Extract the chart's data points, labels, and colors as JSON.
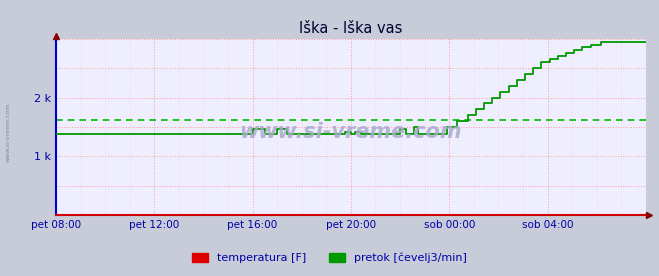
{
  "title": "Iška - Iška vas",
  "outer_bg_color": "#c8ccd8",
  "plot_bg_color": "#eeeeff",
  "ylabel": "",
  "xlabel": "",
  "xlim": [
    0,
    288
  ],
  "ylim": [
    0,
    3000
  ],
  "yticks": [
    1000,
    2000
  ],
  "ytick_labels": [
    "1 k",
    "2 k"
  ],
  "xtick_positions": [
    0,
    48,
    96,
    144,
    192,
    240
  ],
  "xtick_labels": [
    "pet 08:00",
    "pet 12:00",
    "pet 16:00",
    "pet 20:00",
    "sob 00:00",
    "sob 04:00"
  ],
  "avg_line_y": 1620,
  "avg_line_color": "#00bb00",
  "grid_color": "#ff9999",
  "legend_items": [
    {
      "label": "temperatura [F]",
      "color": "#dd0000"
    },
    {
      "label": "pretok [čevelj3/min]",
      "color": "#009900"
    }
  ],
  "pretok_data": [
    [
      0,
      1380
    ],
    [
      95,
      1380
    ],
    [
      96,
      1460
    ],
    [
      101,
      1460
    ],
    [
      102,
      1380
    ],
    [
      107,
      1380
    ],
    [
      108,
      1460
    ],
    [
      112,
      1460
    ],
    [
      113,
      1380
    ],
    [
      140,
      1380
    ],
    [
      141,
      1420
    ],
    [
      143,
      1420
    ],
    [
      144,
      1380
    ],
    [
      145,
      1380
    ],
    [
      146,
      1410
    ],
    [
      148,
      1410
    ],
    [
      149,
      1380
    ],
    [
      167,
      1380
    ],
    [
      168,
      1460
    ],
    [
      170,
      1460
    ],
    [
      171,
      1380
    ],
    [
      174,
      1380
    ],
    [
      175,
      1500
    ],
    [
      176,
      1500
    ],
    [
      177,
      1380
    ],
    [
      190,
      1380
    ],
    [
      191,
      1500
    ],
    [
      195,
      1500
    ],
    [
      196,
      1600
    ],
    [
      200,
      1600
    ],
    [
      201,
      1700
    ],
    [
      204,
      1700
    ],
    [
      205,
      1800
    ],
    [
      208,
      1800
    ],
    [
      209,
      1900
    ],
    [
      212,
      1900
    ],
    [
      213,
      2000
    ],
    [
      216,
      2000
    ],
    [
      217,
      2100
    ],
    [
      220,
      2100
    ],
    [
      221,
      2200
    ],
    [
      224,
      2200
    ],
    [
      225,
      2300
    ],
    [
      228,
      2300
    ],
    [
      229,
      2400
    ],
    [
      232,
      2400
    ],
    [
      233,
      2500
    ],
    [
      236,
      2500
    ],
    [
      237,
      2600
    ],
    [
      240,
      2600
    ],
    [
      241,
      2650
    ],
    [
      244,
      2650
    ],
    [
      245,
      2700
    ],
    [
      248,
      2700
    ],
    [
      249,
      2750
    ],
    [
      252,
      2750
    ],
    [
      253,
      2800
    ],
    [
      256,
      2800
    ],
    [
      257,
      2850
    ],
    [
      260,
      2850
    ],
    [
      261,
      2900
    ],
    [
      265,
      2900
    ],
    [
      266,
      2950
    ],
    [
      270,
      2950
    ],
    [
      271,
      2950
    ],
    [
      288,
      2950
    ]
  ],
  "temperatura_data": [
    [
      0,
      4
    ],
    [
      288,
      4
    ]
  ]
}
